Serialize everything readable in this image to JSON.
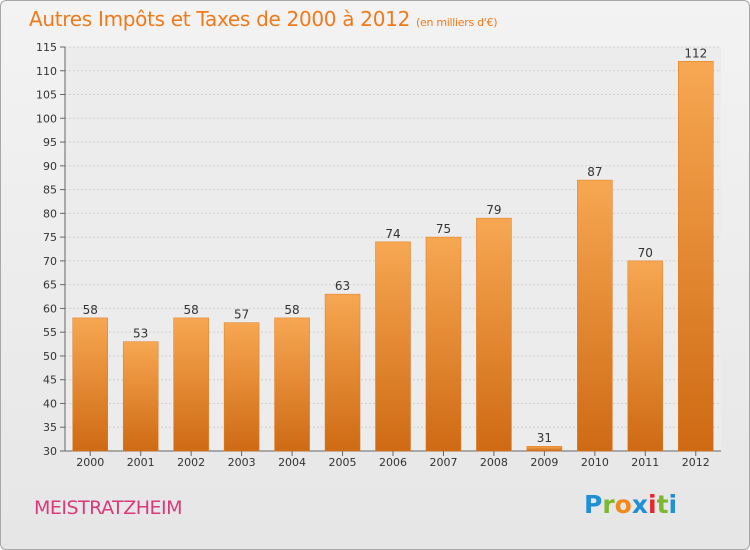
{
  "title": "Autres Impôts et Taxes de 2000 à 2012",
  "subtitle": "(en milliers d'€)",
  "commune": "MEISTRATZHEIM",
  "logo": {
    "letters": [
      "P",
      "r",
      "o",
      "x",
      "i",
      "t",
      "i"
    ],
    "colors": [
      "#1f8fd6",
      "#7cb82f",
      "#f08a1c",
      "#1f8fd6",
      "#e8262a",
      "#7cb82f",
      "#1f8fd6"
    ]
  },
  "colors": {
    "bar": "#f08a2a",
    "bar_light": "#f7a752",
    "bar_dark": "#cf6a14",
    "title": "#ef7a1a",
    "commune": "#d93a7a"
  },
  "chart_data": {
    "type": "bar",
    "categories": [
      "2000",
      "2001",
      "2002",
      "2003",
      "2004",
      "2005",
      "2006",
      "2007",
      "2008",
      "2009",
      "2010",
      "2011",
      "2012"
    ],
    "values": [
      58,
      53,
      58,
      57,
      58,
      63,
      74,
      75,
      79,
      31,
      87,
      70,
      112
    ],
    "ylim": [
      30,
      115
    ],
    "yticks": [
      30,
      35,
      40,
      45,
      50,
      55,
      60,
      65,
      70,
      75,
      80,
      85,
      90,
      95,
      100,
      105,
      110,
      115
    ],
    "grid": true
  }
}
